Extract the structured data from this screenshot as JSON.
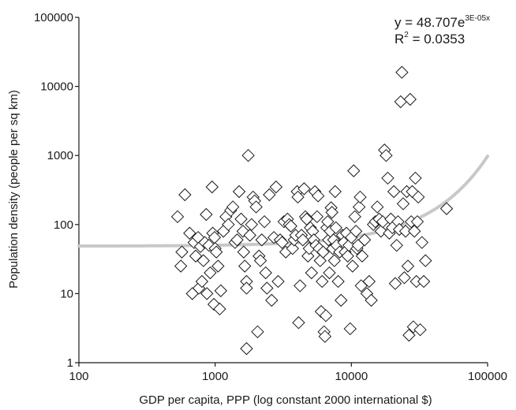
{
  "chart_data": {
    "type": "scatter",
    "title": "",
    "xlabel": "GDP per capita, PPP (log constant 2000 international $)",
    "ylabel": "Population density (people per sq km)",
    "x_scale": "log",
    "y_scale": "log",
    "xlim": [
      100,
      100000
    ],
    "ylim": [
      1,
      100000
    ],
    "x_ticks": [
      "100",
      "1000",
      "10000",
      "100000"
    ],
    "y_ticks": [
      "1",
      "10",
      "100",
      "1000",
      "10000",
      "100000"
    ],
    "grid": false,
    "marker": "diamond-open",
    "trendline": {
      "type": "exponential",
      "a": 48.707,
      "b": 3e-05,
      "color": "#c8c8c8",
      "equation_prefix": "y = 48.707e",
      "equation_exponent": "3E-05x",
      "r2_prefix": "R",
      "r2_exponent": "2",
      "r2_suffix": " = 0.0353"
    },
    "points": [
      [
        530,
        130
      ],
      [
        560,
        25
      ],
      [
        570,
        40
      ],
      [
        600,
        270
      ],
      [
        650,
        75
      ],
      [
        680,
        10
      ],
      [
        700,
        55
      ],
      [
        720,
        35
      ],
      [
        750,
        65
      ],
      [
        760,
        12
      ],
      [
        780,
        48
      ],
      [
        800,
        15
      ],
      [
        820,
        30
      ],
      [
        840,
        55
      ],
      [
        860,
        140
      ],
      [
        870,
        10
      ],
      [
        900,
        50
      ],
      [
        920,
        20
      ],
      [
        950,
        350
      ],
      [
        960,
        75
      ],
      [
        980,
        7
      ],
      [
        990,
        65
      ],
      [
        1000,
        45
      ],
      [
        1020,
        40
      ],
      [
        1050,
        25
      ],
      [
        1080,
        6
      ],
      [
        1100,
        11
      ],
      [
        1150,
        80
      ],
      [
        1200,
        130
      ],
      [
        1250,
        100
      ],
      [
        1300,
        160
      ],
      [
        1350,
        180
      ],
      [
        1400,
        55
      ],
      [
        1450,
        60
      ],
      [
        1500,
        300
      ],
      [
        1550,
        120
      ],
      [
        1600,
        80
      ],
      [
        1620,
        40
      ],
      [
        1650,
        25
      ],
      [
        1700,
        15
      ],
      [
        1700,
        12
      ],
      [
        1700,
        1.6
      ],
      [
        1750,
        1000
      ],
      [
        1800,
        70
      ],
      [
        1850,
        100
      ],
      [
        1900,
        250
      ],
      [
        1950,
        220
      ],
      [
        2000,
        180
      ],
      [
        2050,
        2.8
      ],
      [
        2100,
        35
      ],
      [
        2150,
        30
      ],
      [
        2200,
        60
      ],
      [
        2300,
        110
      ],
      [
        2350,
        20
      ],
      [
        2400,
        12
      ],
      [
        2500,
        270
      ],
      [
        2600,
        8
      ],
      [
        2700,
        65
      ],
      [
        2800,
        350
      ],
      [
        2900,
        15
      ],
      [
        3000,
        60
      ],
      [
        3100,
        55
      ],
      [
        3200,
        110
      ],
      [
        3300,
        40
      ],
      [
        3400,
        120
      ],
      [
        3500,
        100
      ],
      [
        3600,
        95
      ],
      [
        3700,
        45
      ],
      [
        3800,
        60
      ],
      [
        3900,
        70
      ],
      [
        4000,
        300
      ],
      [
        4050,
        250
      ],
      [
        4100,
        3.8
      ],
      [
        4200,
        13
      ],
      [
        4300,
        70
      ],
      [
        4400,
        60
      ],
      [
        4500,
        330
      ],
      [
        4600,
        130
      ],
      [
        4700,
        120
      ],
      [
        4800,
        35
      ],
      [
        4900,
        45
      ],
      [
        5000,
        90
      ],
      [
        5100,
        20
      ],
      [
        5200,
        80
      ],
      [
        5300,
        60
      ],
      [
        5400,
        300
      ],
      [
        5500,
        50
      ],
      [
        5600,
        130
      ],
      [
        5700,
        260
      ],
      [
        5800,
        45
      ],
      [
        5900,
        30
      ],
      [
        6000,
        5.5
      ],
      [
        6100,
        15
      ],
      [
        6200,
        40
      ],
      [
        6300,
        2.8
      ],
      [
        6400,
        2.4
      ],
      [
        6500,
        4.8
      ],
      [
        6600,
        90
      ],
      [
        6700,
        110
      ],
      [
        6800,
        60
      ],
      [
        6900,
        20
      ],
      [
        7000,
        80
      ],
      [
        7100,
        175
      ],
      [
        7200,
        150
      ],
      [
        7300,
        45
      ],
      [
        7400,
        60
      ],
      [
        7500,
        30
      ],
      [
        7600,
        300
      ],
      [
        7700,
        90
      ],
      [
        7800,
        50
      ],
      [
        8000,
        15
      ],
      [
        8200,
        40
      ],
      [
        8400,
        8
      ],
      [
        8600,
        70
      ],
      [
        8800,
        55
      ],
      [
        9000,
        40
      ],
      [
        9200,
        75
      ],
      [
        9400,
        35
      ],
      [
        9600,
        50
      ],
      [
        9800,
        3.1
      ],
      [
        10000,
        65
      ],
      [
        10200,
        25
      ],
      [
        10400,
        600
      ],
      [
        10600,
        130
      ],
      [
        10800,
        80
      ],
      [
        11000,
        45
      ],
      [
        11200,
        50
      ],
      [
        11400,
        180
      ],
      [
        11600,
        250
      ],
      [
        11800,
        13
      ],
      [
        12000,
        35
      ],
      [
        12500,
        60
      ],
      [
        13000,
        10
      ],
      [
        13500,
        15
      ],
      [
        14000,
        8
      ],
      [
        14500,
        100
      ],
      [
        15000,
        110
      ],
      [
        15500,
        180
      ],
      [
        16000,
        120
      ],
      [
        16500,
        80
      ],
      [
        17000,
        110
      ],
      [
        17500,
        1200
      ],
      [
        18000,
        1000
      ],
      [
        18500,
        470
      ],
      [
        19000,
        75
      ],
      [
        19500,
        120
      ],
      [
        20000,
        90
      ],
      [
        20500,
        300
      ],
      [
        21000,
        14
      ],
      [
        21500,
        50
      ],
      [
        22000,
        110
      ],
      [
        22500,
        85
      ],
      [
        23000,
        6000
      ],
      [
        23500,
        16000
      ],
      [
        24000,
        200
      ],
      [
        24500,
        17
      ],
      [
        25000,
        80
      ],
      [
        25500,
        300
      ],
      [
        26000,
        25
      ],
      [
        26500,
        2.5
      ],
      [
        27000,
        6500
      ],
      [
        27500,
        110
      ],
      [
        28000,
        300
      ],
      [
        28500,
        3.3
      ],
      [
        29000,
        80
      ],
      [
        29500,
        470
      ],
      [
        30000,
        15
      ],
      [
        30500,
        110
      ],
      [
        31000,
        250
      ],
      [
        32000,
        3
      ],
      [
        33000,
        55
      ],
      [
        34000,
        15
      ],
      [
        35000,
        30
      ],
      [
        50000,
        170
      ]
    ]
  }
}
